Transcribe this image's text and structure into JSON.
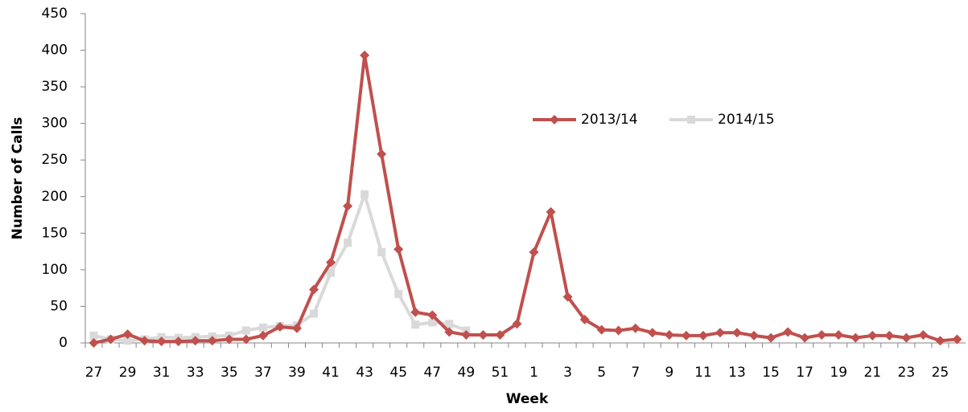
{
  "chart_data": {
    "type": "line",
    "y_label": "Number of Calls",
    "x_label": "Week",
    "categories": [
      "27",
      null,
      "29",
      null,
      "31",
      null,
      "33",
      null,
      "35",
      null,
      "37",
      null,
      "39",
      null,
      "41",
      null,
      "43",
      null,
      "45",
      null,
      "47",
      null,
      "49",
      null,
      "51",
      null,
      "1",
      null,
      "3",
      null,
      "5",
      null,
      "7",
      null,
      "9",
      null,
      "11",
      null,
      "13",
      null,
      "15",
      null,
      "17",
      null,
      "19",
      null,
      "21",
      null,
      "23",
      null,
      "25",
      null
    ],
    "series": [
      {
        "name": "2013/14",
        "color": "#c0504d",
        "marker": "diamond",
        "values": [
          0,
          5,
          12,
          3,
          2,
          2,
          3,
          3,
          5,
          5,
          10,
          22,
          20,
          73,
          110,
          187,
          393,
          258,
          128,
          42,
          38,
          15,
          11,
          11,
          11,
          26,
          124,
          179,
          63,
          32,
          18,
          17,
          20,
          14,
          11,
          10,
          10,
          14,
          14,
          10,
          7,
          15,
          7,
          11,
          11,
          7,
          10,
          10,
          7,
          11,
          3,
          5
        ]
      },
      {
        "name": "2014/15",
        "color": "#d9d9d9",
        "marker": "square",
        "values": [
          10,
          5,
          3,
          5,
          8,
          7,
          8,
          9,
          10,
          17,
          21,
          23,
          24,
          40,
          96,
          137,
          203,
          124,
          67,
          25,
          28,
          26,
          17,
          null,
          null,
          null,
          null,
          null,
          null,
          null,
          null,
          null,
          null,
          null,
          null,
          null,
          null,
          null,
          null,
          null,
          null,
          null,
          null,
          null,
          null,
          null,
          null,
          null,
          null,
          null,
          null,
          null
        ]
      }
    ],
    "ylim": [
      0,
      450
    ],
    "yticks": [
      0,
      50,
      100,
      150,
      200,
      250,
      300,
      350,
      400,
      450
    ],
    "grid": false
  }
}
